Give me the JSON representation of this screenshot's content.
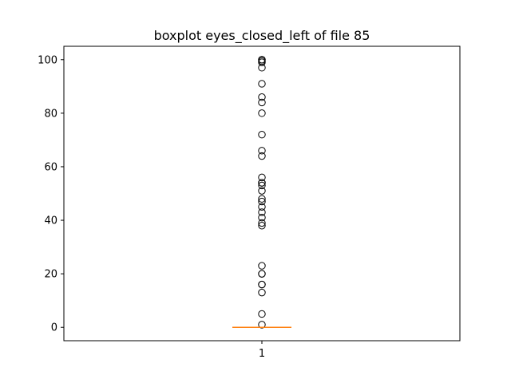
{
  "chart_data": {
    "type": "boxplot",
    "title": "boxplot eyes_closed_left of file 85",
    "xlabel": "",
    "ylabel": "",
    "categories": [
      "1"
    ],
    "ylim": [
      -5,
      105
    ],
    "yticks": [
      0,
      20,
      40,
      60,
      80,
      100
    ],
    "grid": false,
    "box": {
      "q1": 0,
      "median": 0,
      "q3": 0,
      "whisker_low": 0,
      "whisker_high": 0
    },
    "outliers": [
      1,
      5,
      13,
      16,
      16,
      20,
      20,
      23,
      38,
      39,
      41,
      43,
      45,
      47,
      48,
      51,
      53,
      54,
      54,
      56,
      64,
      66,
      72,
      80,
      84,
      86,
      91,
      97,
      99,
      99.5,
      100,
      100
    ],
    "colors": {
      "median": "#ff7f0e",
      "box": "#000000",
      "outlier_edge": "#000000"
    }
  }
}
